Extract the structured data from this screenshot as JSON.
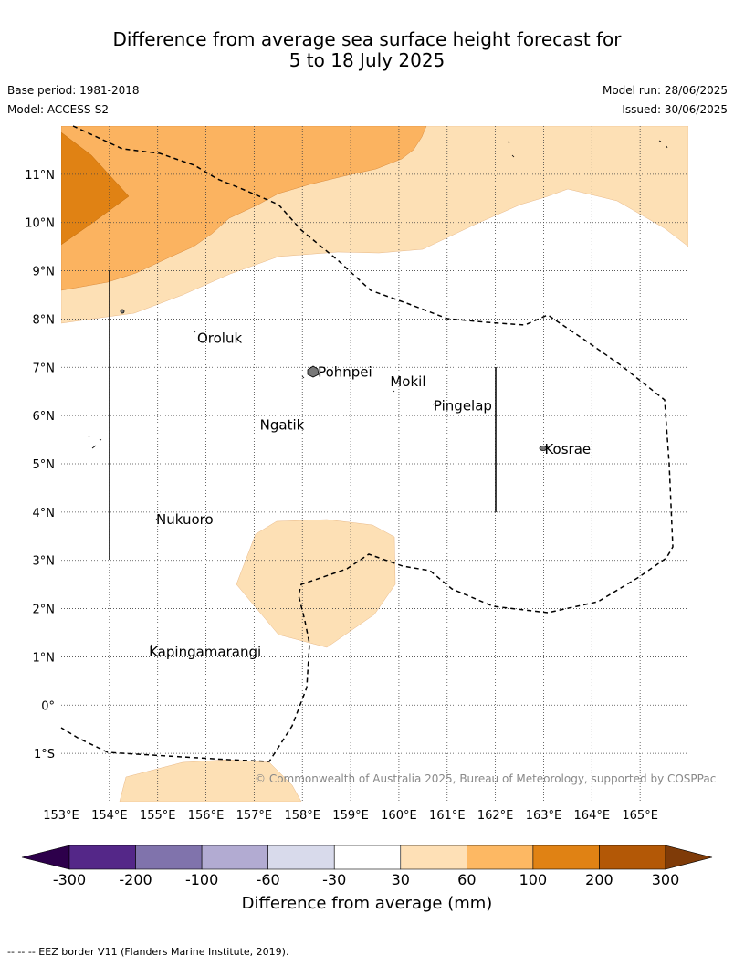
{
  "title": {
    "line1": "Difference from average sea surface height forecast for",
    "line2": "5 to 18 July 2025"
  },
  "meta": {
    "base_period": "Base period: 1981-2018",
    "model": "Model: ACCESS-S2",
    "model_run": "Model run: 28/06/2025",
    "issued": "Issued: 30/06/2025"
  },
  "map": {
    "lon_range": [
      153,
      166
    ],
    "lat_range": [
      -2,
      12
    ],
    "lon_ticks": [
      "153°E",
      "154°E",
      "155°E",
      "156°E",
      "157°E",
      "158°E",
      "159°E",
      "160°E",
      "161°E",
      "162°E",
      "163°E",
      "164°E",
      "165°E"
    ],
    "lat_ticks": [
      "11°N",
      "10°N",
      "9°N",
      "8°N",
      "7°N",
      "6°N",
      "5°N",
      "4°N",
      "3°N",
      "2°N",
      "1°N",
      "0°",
      "1°S"
    ],
    "places": [
      {
        "name": "Oroluk",
        "lon": 155.8,
        "lat": 7.6
      },
      {
        "name": "Pohnpei",
        "lon": 158.3,
        "lat": 6.9
      },
      {
        "name": "Mokil",
        "lon": 159.8,
        "lat": 6.7
      },
      {
        "name": "Pingelap",
        "lon": 160.7,
        "lat": 6.2
      },
      {
        "name": "Ngatik",
        "lon": 157.1,
        "lat": 5.8
      },
      {
        "name": "Kosrae",
        "lon": 163.0,
        "lat": 5.3
      },
      {
        "name": "Nukuoro",
        "lon": 154.95,
        "lat": 3.85
      },
      {
        "name": "Kapingamarangi",
        "lon": 154.8,
        "lat": 1.1
      }
    ],
    "copyright": "© Commonwealth of Australia 2025, Bureau of Meteorology, supported by COSPPac",
    "fill_colors": {
      "30-60": "#fde0b5",
      "60-100": "#fbb360",
      "100-200": "#e08214",
      "200-300": "#b35806"
    }
  },
  "colorbar": {
    "title": "Difference from average (mm)",
    "labels": [
      "-300",
      "-200",
      "-100",
      "-60",
      "-30",
      "30",
      "60",
      "100",
      "200",
      "300"
    ],
    "colors": [
      "#2d004b",
      "#542788",
      "#8073ac",
      "#b2abd2",
      "#d8daeb",
      "#ffffff",
      "#fee0b6",
      "#fdb863",
      "#e08214",
      "#b35806",
      "#7f3b08"
    ]
  },
  "footer": "-- -- -- EEZ border V11 (Flanders Marine Institute, 2019)."
}
